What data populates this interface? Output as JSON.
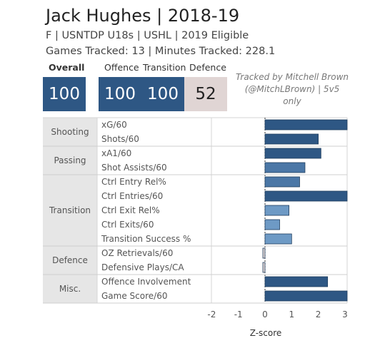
{
  "header": {
    "title": "Jack Hughes | 2018-19",
    "subtitle": "F | USNTDP U18s | USHL | 2019 Eligible",
    "tracking": "Games Tracked: 13 | Minutes Tracked: 228.1"
  },
  "scores": {
    "overall_label": "Overall",
    "overall": "100",
    "offence_label": "Offence",
    "offence": "100",
    "transition_label": "Transition",
    "transition": "100",
    "defence_label": "Defence",
    "defence": "52"
  },
  "credit": {
    "line1": "Tracked by Mitchell Brown",
    "line2": "(@MitchLBrown) | 5v5",
    "line3": "only"
  },
  "colors": {
    "dark_blue": "#2e5784",
    "mid_blue": "#4b77a6",
    "light_blue": "#6e9ac5",
    "defence_box": "#e0d5d4",
    "negative_bar": "#e0d5d4",
    "category_bg": "#e6e6e6"
  },
  "chart_data": {
    "type": "bar",
    "orientation": "horizontal",
    "xlabel": "Z-score",
    "xlim": [
      -2.6,
      3
    ],
    "xticks": [
      "-2",
      "-1",
      "0",
      "1",
      "2",
      "3"
    ],
    "groups": [
      {
        "name": "Shooting",
        "rows": [
          {
            "label": "xG/60",
            "value": 3.2
          },
          {
            "label": "Shots/60",
            "value": 2.0
          }
        ]
      },
      {
        "name": "Passing",
        "rows": [
          {
            "label": "xA1/60",
            "value": 2.1
          },
          {
            "label": "Shot Assists/60",
            "value": 1.5
          }
        ]
      },
      {
        "name": "Transition",
        "rows": [
          {
            "label": "Ctrl Entry Rel%",
            "value": 1.3
          },
          {
            "label": "Ctrl Entries/60",
            "value": 3.2
          },
          {
            "label": "Ctrl Exit Rel%",
            "value": 0.9
          },
          {
            "label": "Ctrl Exits/60",
            "value": 0.55
          },
          {
            "label": "Transition Success %",
            "value": 1.0
          }
        ]
      },
      {
        "name": "Defence",
        "rows": [
          {
            "label": "OZ Retrievals/60",
            "value": -0.08
          },
          {
            "label": "Defensive Plays/CA",
            "value": -0.08
          }
        ]
      },
      {
        "name": "Misc.",
        "rows": [
          {
            "label": "Offence Involvement",
            "value": 2.35
          },
          {
            "label": "Game Score/60",
            "value": 3.2
          }
        ]
      }
    ]
  }
}
